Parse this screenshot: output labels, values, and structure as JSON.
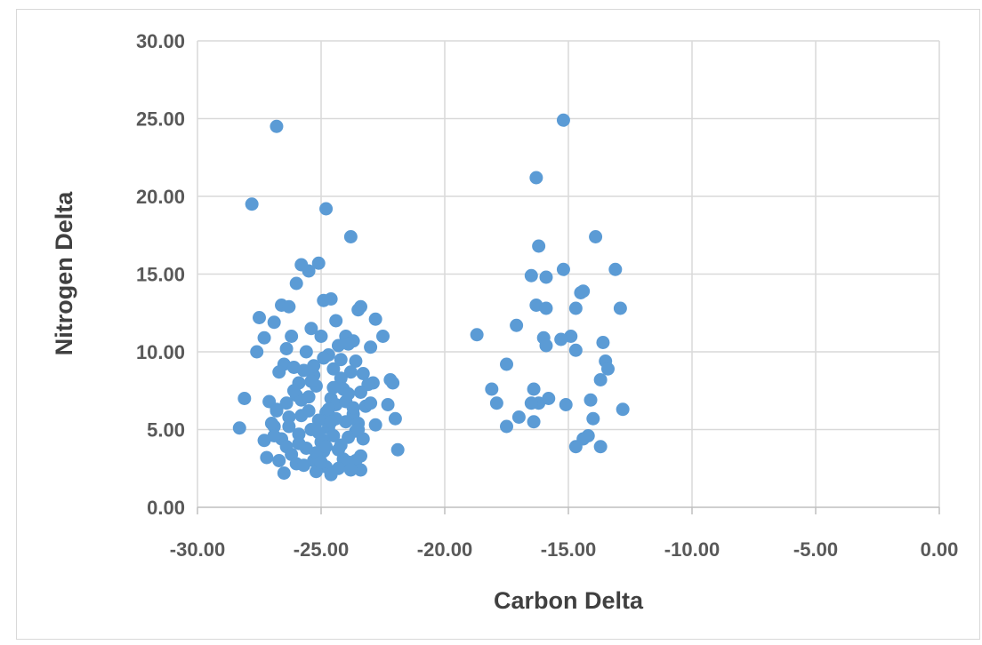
{
  "chart_data": {
    "type": "scatter",
    "title": "",
    "xlabel": "Carbon Delta",
    "ylabel": "Nitrogen Delta",
    "xlim": [
      -30,
      0
    ],
    "ylim": [
      0,
      30
    ],
    "x_ticks": [
      -30,
      -25,
      -20,
      -15,
      -10,
      -5,
      0
    ],
    "y_ticks": [
      0,
      5,
      10,
      15,
      20,
      25,
      30
    ],
    "x_tick_labels": [
      "-30.00",
      "-25.00",
      "-20.00",
      "-15.00",
      "-10.00",
      "-5.00",
      "0.00"
    ],
    "y_tick_labels": [
      "0.00",
      "5.00",
      "10.00",
      "15.00",
      "20.00",
      "25.00",
      "30.00"
    ],
    "grid": true,
    "legend": "none",
    "marker_color": "#5b9bd5",
    "series": [
      {
        "x": [
          -26.8,
          -27.8,
          -24.8,
          -23.8,
          -25.8,
          -25.5,
          -25.1,
          -26.0,
          -24.9,
          -24.6,
          -26.6,
          -26.3,
          -24.4,
          -23.4,
          -27.5,
          -26.9,
          -25.4,
          -24.0,
          -22.8,
          -22.5,
          -27.3,
          -26.2,
          -25.0,
          -23.7,
          -23.5,
          -24.3,
          -27.6,
          -26.4,
          -25.6,
          -24.7,
          -23.9,
          -23.0,
          -26.5,
          -24.9,
          -23.6,
          -23.3,
          -22.9,
          -26.1,
          -25.3,
          -24.5,
          -23.8,
          -23.1,
          -26.7,
          -25.7,
          -24.2,
          -22.2,
          -22.1,
          -25.9,
          -25.2,
          -24.1,
          -23.4,
          -26.0,
          -24.6,
          -28.1,
          -27.1,
          -25.8,
          -24.4,
          -23.2,
          -22.3,
          -26.8,
          -25.5,
          -24.8,
          -23.7,
          -23.0,
          -26.3,
          -25.1,
          -24.0,
          -23.5,
          -26.9,
          -25.4,
          -24.7,
          -23.6,
          -22.0,
          -27.0,
          -25.9,
          -24.5,
          -23.9,
          -22.8,
          -28.3,
          -26.6,
          -25.0,
          -24.2,
          -23.3,
          -26.4,
          -25.6,
          -24.9,
          -23.4,
          -27.2,
          -26.2,
          -25.3,
          -24.1,
          -23.6,
          -27.3,
          -26.0,
          -24.8,
          -23.9,
          -26.7,
          -25.7,
          -24.3,
          -23.4,
          -26.5,
          -25.2,
          -24.6,
          -23.8,
          -26.8,
          -25.8,
          -24.4,
          -26.1,
          -25.5,
          -24.0,
          -23.7,
          -26.3,
          -25.1,
          -24.9,
          -24.3,
          -25.4,
          -24.5,
          -24.7,
          -23.5,
          -26.9,
          -25.2,
          -25.0,
          -24.6,
          -26.4,
          -25.9,
          -24.8,
          -23.9,
          -25.3,
          -24.2,
          -21.9,
          -15.2,
          -16.3,
          -13.9,
          -16.2,
          -16.5,
          -15.2,
          -13.1,
          -15.9,
          -14.5,
          -14.4,
          -16.3,
          -15.9,
          -14.7,
          -12.9,
          -18.7,
          -17.1,
          -14.9,
          -15.3,
          -16.0,
          -13.6,
          -15.9,
          -14.7,
          -13.5,
          -17.5,
          -13.4,
          -13.7,
          -18.1,
          -16.4,
          -14.1,
          -16.2,
          -15.8,
          -15.1,
          -17.9,
          -16.5,
          -14.0,
          -17.0,
          -16.4,
          -17.5,
          -14.2,
          -14.4,
          -14.7,
          -13.7,
          -12.8
        ],
        "y": [
          24.5,
          19.5,
          19.2,
          17.4,
          15.6,
          15.2,
          15.7,
          14.4,
          13.3,
          13.4,
          13.0,
          12.9,
          12.0,
          12.9,
          12.2,
          11.9,
          11.5,
          11.0,
          12.1,
          11.0,
          10.9,
          11.0,
          11.0,
          10.7,
          12.7,
          10.4,
          10.0,
          10.2,
          10.0,
          9.8,
          10.5,
          10.3,
          9.2,
          9.6,
          9.4,
          8.6,
          8.0,
          9.0,
          8.5,
          8.9,
          8.7,
          7.9,
          8.7,
          8.8,
          8.3,
          8.2,
          8.0,
          8.0,
          7.8,
          7.6,
          7.4,
          7.2,
          7.0,
          7.0,
          6.8,
          6.9,
          6.6,
          6.5,
          6.6,
          6.3,
          6.2,
          6.1,
          6.0,
          6.7,
          5.8,
          5.6,
          5.5,
          5.4,
          5.2,
          5.0,
          5.1,
          4.9,
          5.7,
          5.4,
          4.7,
          4.6,
          4.5,
          5.3,
          5.1,
          4.4,
          4.2,
          4.0,
          4.4,
          3.9,
          3.8,
          3.6,
          3.3,
          3.2,
          3.4,
          3.0,
          3.1,
          3.0,
          4.3,
          2.8,
          2.6,
          2.9,
          3.0,
          2.7,
          2.5,
          2.4,
          2.2,
          2.3,
          2.1,
          2.4,
          6.2,
          5.9,
          5.7,
          7.5,
          7.1,
          6.8,
          6.4,
          5.2,
          4.8,
          4.3,
          3.7,
          8.1,
          7.7,
          6.3,
          5.0,
          4.6,
          3.5,
          2.9,
          5.5,
          6.7,
          4.1,
          3.9,
          7.3,
          9.1,
          9.5,
          3.7,
          24.9,
          21.2,
          17.4,
          16.8,
          14.9,
          15.3,
          15.3,
          14.8,
          13.8,
          13.9,
          13.0,
          12.8,
          12.8,
          12.8,
          11.1,
          11.7,
          11.0,
          10.8,
          10.9,
          10.6,
          10.4,
          10.1,
          9.4,
          9.2,
          8.9,
          8.2,
          7.6,
          7.6,
          6.9,
          6.7,
          7.0,
          6.6,
          6.7,
          6.7,
          5.7,
          5.8,
          5.5,
          5.2,
          4.6,
          4.4,
          3.9,
          3.9,
          6.3
        ]
      }
    ]
  }
}
